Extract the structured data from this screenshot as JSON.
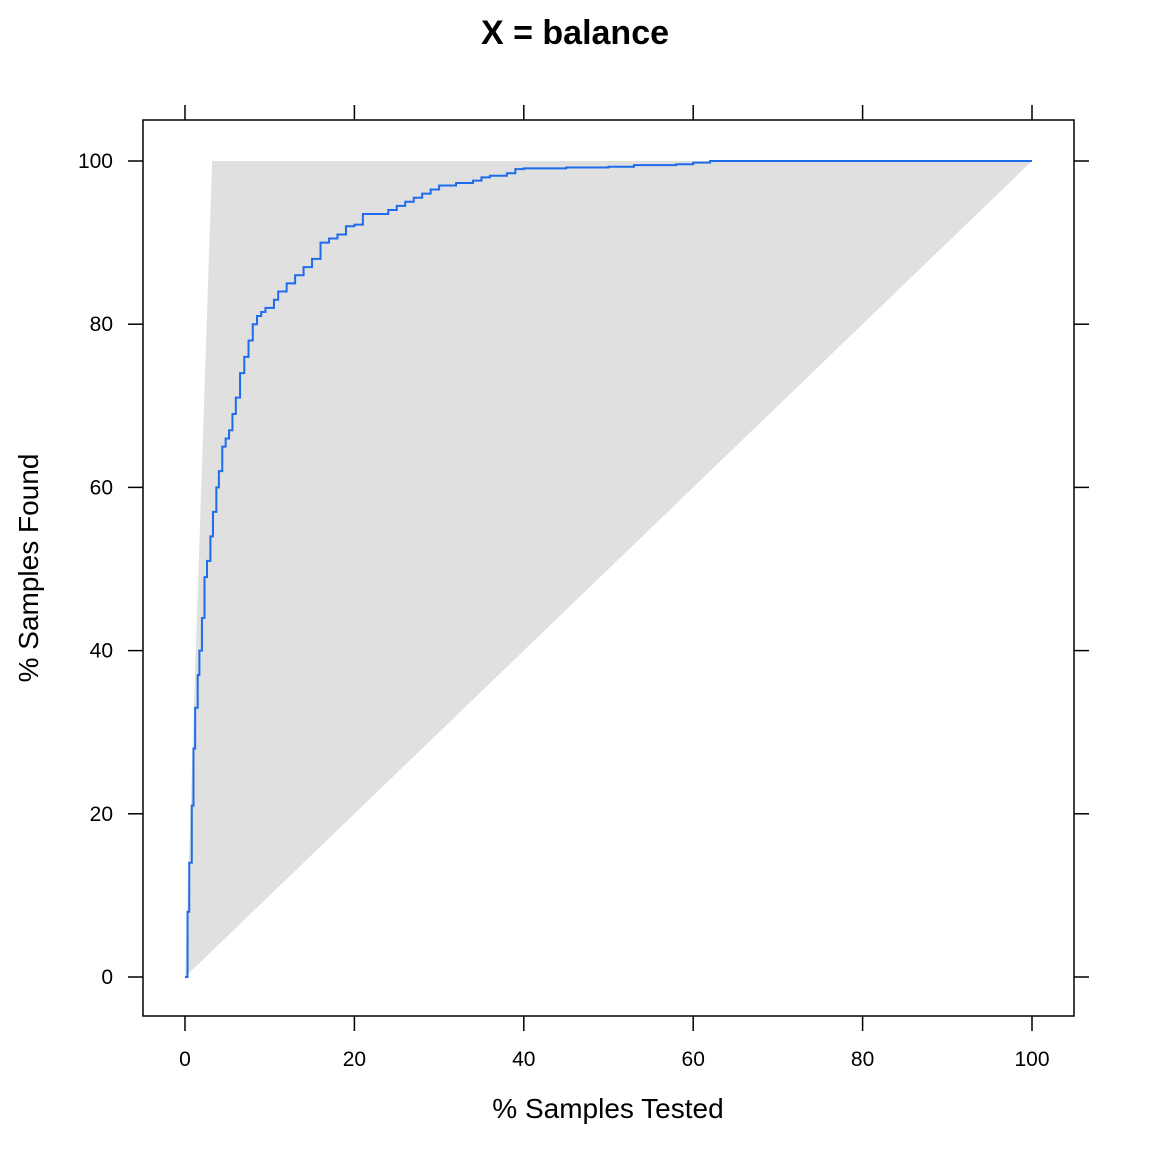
{
  "chart_data": {
    "type": "line",
    "title": "X = balance",
    "xlabel": "% Samples Tested",
    "ylabel": "% Samples Found",
    "xlim": [
      -5,
      105
    ],
    "ylim": [
      -5,
      105
    ],
    "x_ticks": [
      0,
      20,
      40,
      60,
      80,
      100
    ],
    "y_ticks": [
      0,
      20,
      40,
      60,
      80,
      100
    ],
    "grid": false,
    "colors": {
      "line": "#1E6BEB",
      "region": "#E0E0E0"
    },
    "reference_region": {
      "polygon": [
        [
          0,
          0
        ],
        [
          3.2,
          100
        ],
        [
          100,
          100
        ]
      ]
    },
    "series": [
      {
        "x": [
          0,
          0.3,
          0.5,
          0.8,
          1.0,
          1.2,
          1.5,
          1.7,
          2.0,
          2.3,
          2.6,
          3.0,
          3.3,
          3.7,
          4.0,
          4.4,
          4.8,
          5.2,
          5.6,
          6.0,
          6.5,
          7.0,
          7.5,
          8.0,
          8.5,
          9.0,
          9.5,
          10.0,
          10.5,
          11.0,
          12.0,
          13.0,
          14.0,
          15.0,
          16.0,
          17.0,
          18.0,
          19.0,
          20.0,
          21.0,
          22.0,
          23.0,
          24.0,
          25.0,
          26.0,
          27.0,
          28.0,
          29.0,
          30.0,
          32.0,
          34.0,
          35.0,
          36.0,
          38.0,
          39.0,
          40.0,
          45.0,
          50.0,
          53.0,
          55.0,
          58.0,
          60.0,
          62.0,
          63.0,
          70.0,
          80.0,
          90.0,
          100.0
        ],
        "y": [
          0,
          8,
          14,
          21,
          28,
          33,
          37,
          40,
          44,
          49,
          51,
          54,
          57,
          60,
          62,
          65,
          66,
          67,
          69,
          71,
          74,
          76,
          78,
          80,
          81,
          81.5,
          82,
          82,
          83,
          84,
          85,
          86,
          87,
          88,
          90,
          90.5,
          91,
          92,
          92.2,
          93.5,
          93.5,
          93.5,
          94,
          94.5,
          95,
          95.5,
          96,
          96.5,
          97,
          97.3,
          97.6,
          98,
          98.2,
          98.5,
          99,
          99.1,
          99.2,
          99.3,
          99.5,
          99.5,
          99.6,
          99.8,
          100,
          100,
          100,
          100,
          100,
          100
        ]
      }
    ]
  }
}
